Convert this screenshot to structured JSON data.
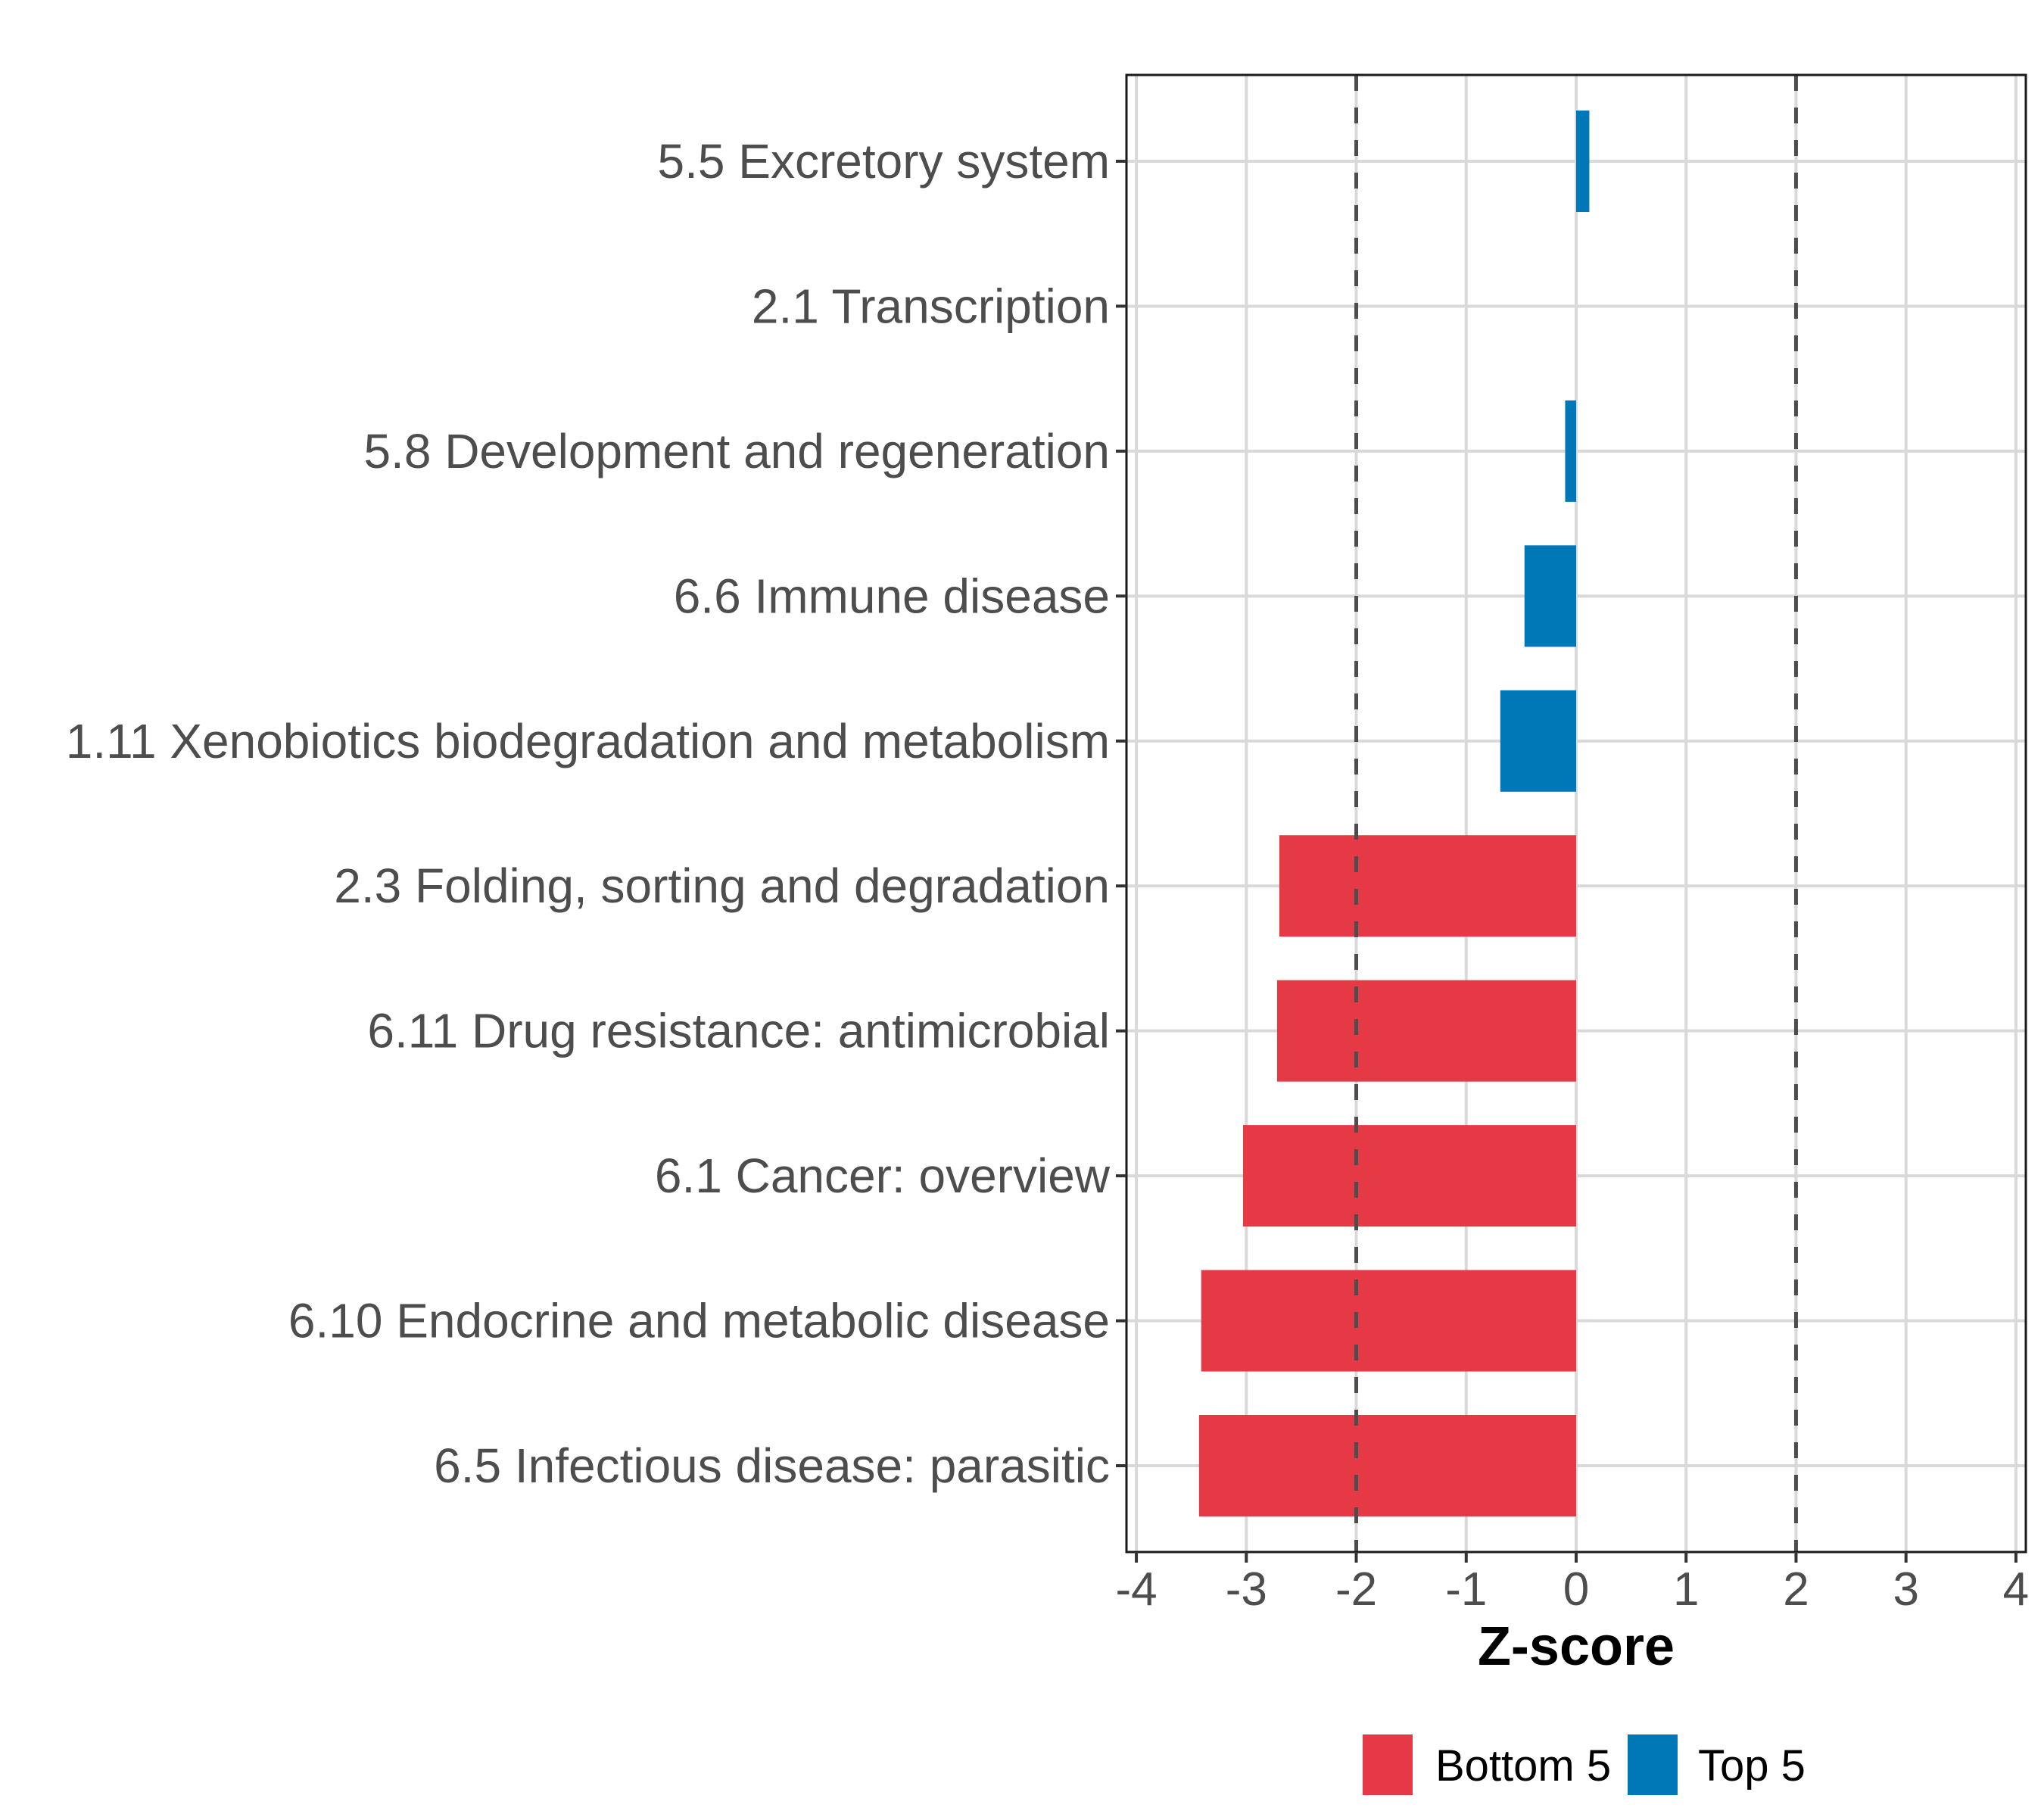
{
  "chart_data": {
    "type": "bar",
    "orientation": "horizontal",
    "title": "",
    "xlabel": "Z-score",
    "ylabel": "",
    "xlim": [
      -4.09,
      4.09
    ],
    "xticks": [
      -4,
      -3,
      -2,
      -1,
      0,
      1,
      2,
      3,
      4
    ],
    "xtick_labels": [
      "-4",
      "-3",
      "-2",
      "-1",
      "0",
      "1",
      "2",
      "3",
      "4"
    ],
    "grid": true,
    "reference_lines": [
      {
        "x": -2,
        "style": "dashed"
      },
      {
        "x": 2,
        "style": "dashed"
      }
    ],
    "categories": [
      "5.5 Excretory system",
      "2.1 Transcription",
      "5.8 Development and regeneration",
      "6.6 Immune disease",
      "1.11 Xenobiotics biodegradation and metabolism",
      "2.3 Folding, sorting and degradation",
      "6.11 Drug resistance: antimicrobial",
      "6.1 Cancer: overview",
      "6.10 Endocrine and metabolic disease",
      "6.5 Infectious disease: parasitic"
    ],
    "values": [
      0.12,
      0.0,
      -0.1,
      -0.47,
      -0.69,
      -2.7,
      -2.72,
      -3.03,
      -3.41,
      -3.43
    ],
    "groups": [
      "Top 5",
      "Top 5",
      "Top 5",
      "Top 5",
      "Top 5",
      "Bottom 5",
      "Bottom 5",
      "Bottom 5",
      "Bottom 5",
      "Bottom 5"
    ],
    "legend": {
      "position": "bottom",
      "entries": [
        {
          "label": "Bottom 5",
          "color": "#E63946"
        },
        {
          "label": "Top 5",
          "color": "#0077B6"
        }
      ]
    },
    "colors": {
      "Bottom 5": "#E63946",
      "Top 5": "#0077B6"
    }
  }
}
